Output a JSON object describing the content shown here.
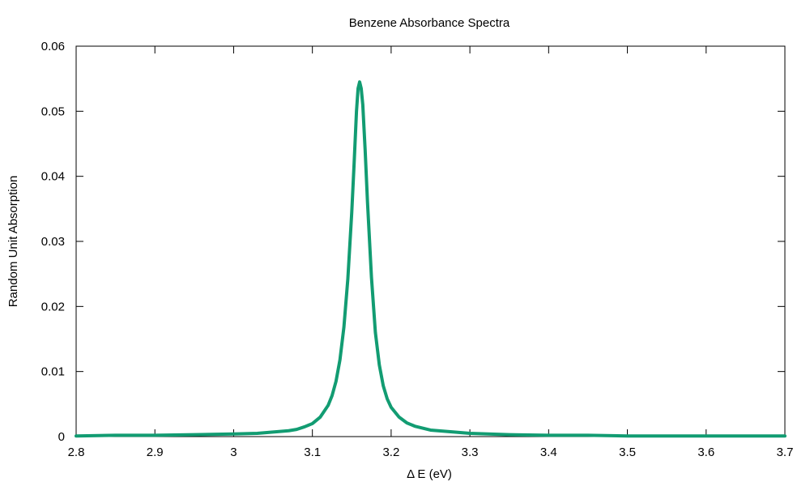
{
  "chart_data": {
    "type": "line",
    "title": "Benzene Absorbance Spectra",
    "xlabel": "Δ E (eV)",
    "ylabel": "Random Unit Absorption",
    "xlim": [
      2.8,
      3.7
    ],
    "ylim": [
      0,
      0.06
    ],
    "x_ticks": [
      "2.8",
      "2.9",
      "3",
      "3.1",
      "3.2",
      "3.3",
      "3.4",
      "3.5",
      "3.6",
      "3.7"
    ],
    "y_ticks": [
      "0",
      "0.01",
      "0.02",
      "0.03",
      "0.04",
      "0.05",
      "0.06"
    ],
    "grid": false,
    "legend": "none",
    "series": [
      {
        "color": "#129c72",
        "x": [
          2.8,
          2.85,
          2.9,
          2.95,
          3.0,
          3.03,
          3.05,
          3.07,
          3.08,
          3.09,
          3.1,
          3.11,
          3.12,
          3.125,
          3.13,
          3.135,
          3.14,
          3.145,
          3.15,
          3.153,
          3.156,
          3.158,
          3.16,
          3.162,
          3.164,
          3.167,
          3.17,
          3.175,
          3.18,
          3.185,
          3.19,
          3.195,
          3.2,
          3.21,
          3.22,
          3.23,
          3.25,
          3.28,
          3.3,
          3.35,
          3.4,
          3.45,
          3.5,
          3.6,
          3.7
        ],
        "y": [
          0.0001,
          0.0002,
          0.0002,
          0.0003,
          0.0004,
          0.0005,
          0.0007,
          0.0009,
          0.0011,
          0.0015,
          0.002,
          0.003,
          0.0048,
          0.0063,
          0.0085,
          0.0118,
          0.0168,
          0.0242,
          0.0345,
          0.042,
          0.05,
          0.0535,
          0.0545,
          0.0535,
          0.051,
          0.044,
          0.036,
          0.0245,
          0.016,
          0.011,
          0.0078,
          0.0058,
          0.0045,
          0.003,
          0.0021,
          0.0016,
          0.001,
          0.0007,
          0.0005,
          0.0003,
          0.0002,
          0.0002,
          0.0001,
          0.0001,
          0.0001
        ]
      }
    ]
  }
}
